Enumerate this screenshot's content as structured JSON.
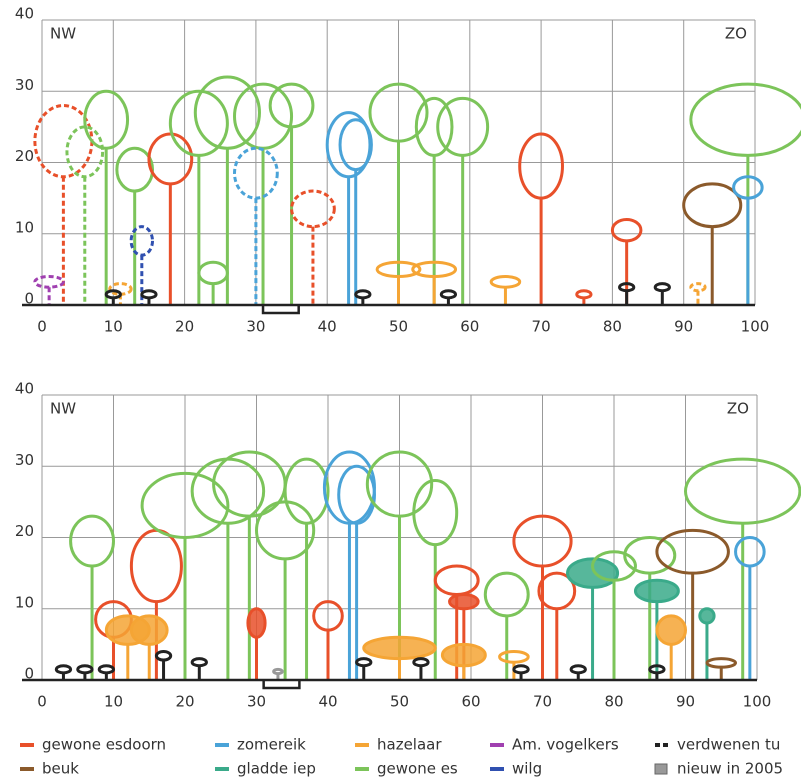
{
  "panels": [
    {
      "corner_left": "NW",
      "corner_right": "ZO",
      "xlim": [
        0,
        100
      ],
      "ylim": [
        0,
        40
      ],
      "xticks": [
        0,
        10,
        20,
        30,
        40,
        50,
        60,
        70,
        80,
        90,
        100
      ],
      "yticks": [
        0,
        10,
        20,
        30,
        40
      ]
    },
    {
      "corner_left": "NW",
      "corner_right": "ZO",
      "xlim": [
        0,
        100
      ],
      "ylim": [
        0,
        40
      ],
      "xticks": [
        0,
        10,
        20,
        30,
        40,
        50,
        60,
        70,
        80,
        90,
        100
      ],
      "yticks": [
        0,
        10,
        20,
        30,
        40
      ]
    }
  ],
  "legend": [
    {
      "label": "gewone esdoorn",
      "color": "#e8502a"
    },
    {
      "label": "zomereik",
      "color": "#4aa3d8"
    },
    {
      "label": "hazelaar",
      "color": "#f5a535"
    },
    {
      "label": "Am. vogelkers",
      "color": "#a040b0"
    },
    {
      "label": "verdwenen tu",
      "color": "#222222"
    },
    {
      "label": "beuk",
      "color": "#8b5a2b"
    },
    {
      "label": "gladde iep",
      "color": "#3aaa8a"
    },
    {
      "label": "gewone es",
      "color": "#7cc45a"
    },
    {
      "label": "wilg",
      "color": "#3050b0"
    },
    {
      "label": "nieuw in 2005",
      "color": "#999999"
    }
  ]
}
